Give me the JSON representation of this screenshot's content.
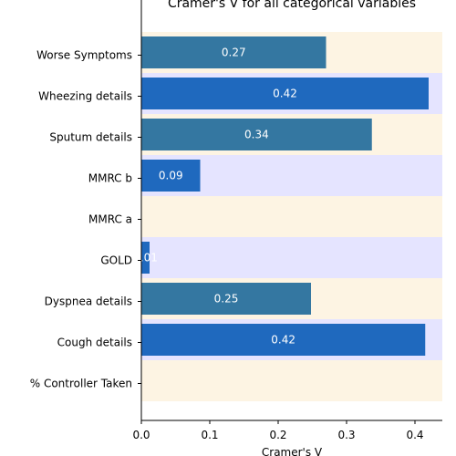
{
  "chart_data": {
    "type": "bar",
    "orientation": "horizontal",
    "title": "Cramer's V for all categorical variables",
    "xlabel": "Cramer's V",
    "ylabel": "",
    "xlim": [
      0,
      0.44
    ],
    "xticks": [
      "0.0",
      "0.1",
      "0.2",
      "0.3",
      "0.4"
    ],
    "categories": [
      "Worse Symptoms",
      "Wheezing details",
      "Sputum details",
      "MMRC b",
      "MMRC a",
      "GOLD",
      "Dyspnea details",
      "Cough details",
      "% Controller Taken"
    ],
    "values": [
      0.27,
      0.42,
      0.337,
      0.086,
      0.0,
      0.012,
      0.248,
      0.415,
      0.0
    ],
    "data_labels": [
      "0.27",
      "0.42",
      "0.34",
      "0.09",
      "",
      "0.01",
      "0.25",
      "0.42",
      ""
    ],
    "bar_colors": [
      "#3477a1",
      "#1f69be",
      "#3477a1",
      "#1f69be",
      "#1f69be",
      "#1f69be",
      "#3477a1",
      "#1f69be",
      "#3477a1"
    ],
    "band_colors": [
      "#fdf4e3",
      "#e5e4ff",
      "#fdf4e3",
      "#e5e4ff",
      "#fdf4e3",
      "#e5e4ff",
      "#fdf4e3",
      "#e5e4ff",
      "#fdf4e3"
    ],
    "grid": false,
    "legend": "none"
  }
}
